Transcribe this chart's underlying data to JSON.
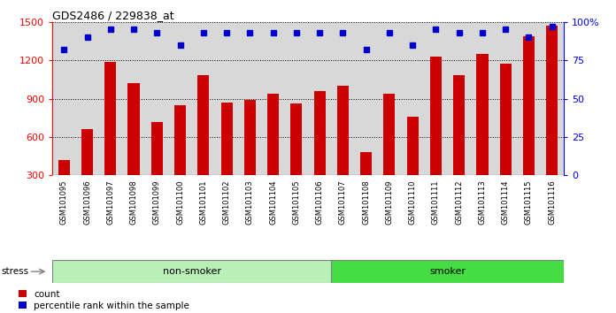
{
  "title": "GDS2486 / 229838_at",
  "samples": [
    "GSM101095",
    "GSM101096",
    "GSM101097",
    "GSM101098",
    "GSM101099",
    "GSM101100",
    "GSM101101",
    "GSM101102",
    "GSM101103",
    "GSM101104",
    "GSM101105",
    "GSM101106",
    "GSM101107",
    "GSM101108",
    "GSM101109",
    "GSM101110",
    "GSM101111",
    "GSM101112",
    "GSM101113",
    "GSM101114",
    "GSM101115",
    "GSM101116"
  ],
  "counts": [
    420,
    660,
    1190,
    1020,
    720,
    850,
    1080,
    870,
    890,
    940,
    860,
    960,
    1000,
    480,
    940,
    760,
    1230,
    1080,
    1250,
    1170,
    1390,
    1470
  ],
  "percentile_ranks": [
    82,
    90,
    95,
    95,
    93,
    85,
    93,
    93,
    93,
    93,
    93,
    93,
    93,
    82,
    93,
    85,
    95,
    93,
    93,
    95,
    90,
    97
  ],
  "bar_color": "#cc0000",
  "dot_color": "#0000cc",
  "ylim_left": [
    300,
    1500
  ],
  "ylim_right": [
    0,
    100
  ],
  "yticks_left": [
    300,
    600,
    900,
    1200,
    1500
  ],
  "yticks_right": [
    0,
    25,
    50,
    75,
    100
  ],
  "group1_label": "non-smoker",
  "group2_label": "smoker",
  "group1_color": "#b8f0b8",
  "group2_color": "#44dd44",
  "group1_count": 12,
  "group2_count": 10,
  "stress_label": "stress",
  "legend_count_label": "count",
  "legend_pct_label": "percentile rank within the sample",
  "plot_bg_color": "#d8d8d8",
  "xticklabel_bg": "#c8c8c8"
}
